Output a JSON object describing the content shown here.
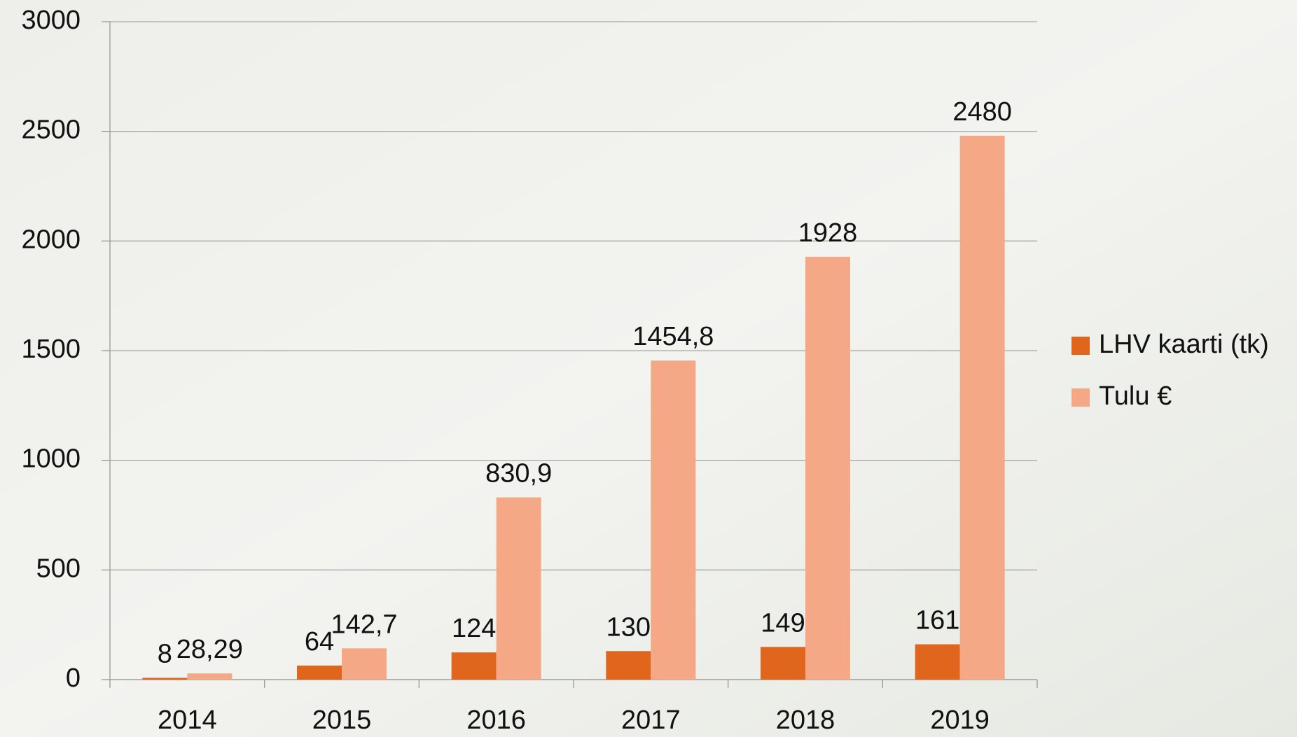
{
  "chart_data": {
    "type": "bar",
    "categories": [
      "2014",
      "2015",
      "2016",
      "2017",
      "2018",
      "2019"
    ],
    "series": [
      {
        "name": "LHV kaarti (tk)",
        "color": "#e0661e",
        "values": [
          8,
          64,
          124,
          130,
          149,
          161
        ]
      },
      {
        "name": "Tulu €",
        "color": "#f5a886",
        "values": [
          28.29,
          142.7,
          830.9,
          1454.8,
          1928,
          2480
        ],
        "value_labels": [
          "28,29",
          "142,7",
          "830,9",
          "1454,8",
          "1928",
          "2480"
        ]
      }
    ],
    "ylim": [
      0,
      3000
    ],
    "yticks": [
      0,
      500,
      1000,
      1500,
      2000,
      2500,
      3000
    ],
    "grid": true,
    "legend": "right"
  }
}
